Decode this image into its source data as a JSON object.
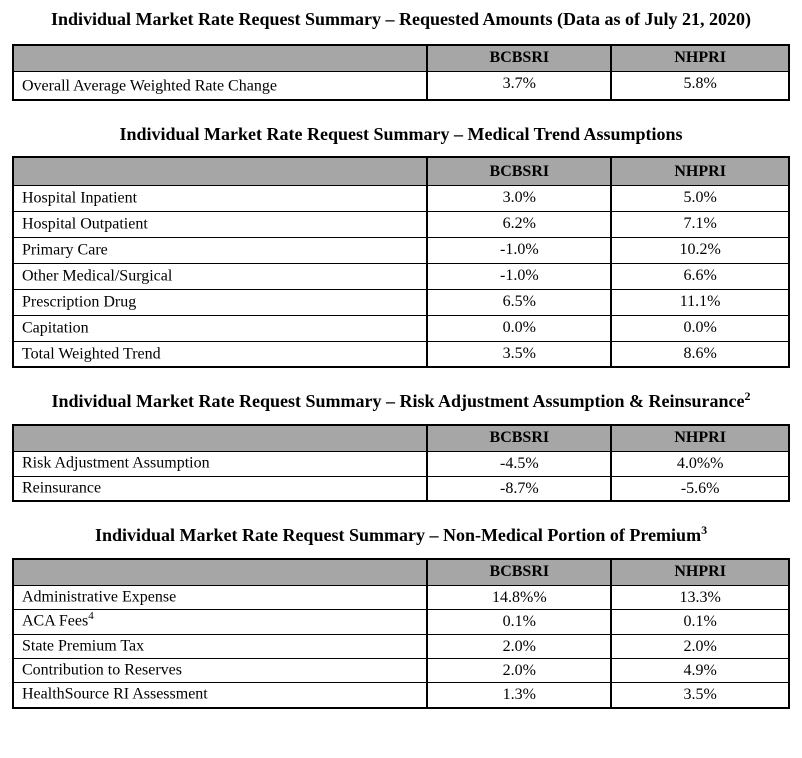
{
  "colors": {
    "header_bg": "#a6a6a6",
    "border": "#000000",
    "page_bg": "#ffffff"
  },
  "sections": [
    {
      "title": "Individual Market Rate Request Summary – Requested Amounts (Data as of July 21, 2020)",
      "columns": [
        "",
        "BCBSRI",
        "NHPRI"
      ],
      "rows": [
        {
          "label": "Overall Average Weighted Rate Change",
          "bcbsri": "3.7%",
          "nhpri": "5.8%"
        }
      ]
    },
    {
      "title": "Individual Market Rate Request Summary – Medical Trend Assumptions",
      "columns": [
        "",
        "BCBSRI",
        "NHPRI"
      ],
      "rows": [
        {
          "label": "Hospital Inpatient",
          "bcbsri": "3.0%",
          "nhpri": "5.0%"
        },
        {
          "label": "Hospital Outpatient",
          "bcbsri": "6.2%",
          "nhpri": "7.1%"
        },
        {
          "label": "Primary Care",
          "bcbsri": "-1.0%",
          "nhpri": "10.2%"
        },
        {
          "label": "Other Medical/Surgical",
          "bcbsri": "-1.0%",
          "nhpri": "6.6%"
        },
        {
          "label": "Prescription Drug",
          "bcbsri": "6.5%",
          "nhpri": "11.1%"
        },
        {
          "label": "Capitation",
          "bcbsri": "0.0%",
          "nhpri": "0.0%"
        },
        {
          "label": "Total Weighted Trend",
          "bcbsri": "3.5%",
          "nhpri": "8.6%"
        }
      ]
    },
    {
      "title": "Individual Market Rate Request Summary – Risk Adjustment Assumption & Reinsurance",
      "title_sup": "2",
      "columns": [
        "",
        "BCBSRI",
        "NHPRI"
      ],
      "rows": [
        {
          "label": "Risk Adjustment Assumption",
          "bcbsri": "-4.5%",
          "nhpri": "4.0%%"
        },
        {
          "label": "Reinsurance",
          "bcbsri": "-8.7%",
          "nhpri": "-5.6%"
        }
      ]
    },
    {
      "title": "Individual Market Rate Request Summary – Non-Medical Portion of Premium",
      "title_sup": "3",
      "columns": [
        "",
        "BCBSRI",
        "NHPRI"
      ],
      "rows": [
        {
          "label": "Administrative Expense",
          "bcbsri": "14.8%%",
          "nhpri": "13.3%"
        },
        {
          "label": "ACA Fees",
          "label_sup": "4",
          "bcbsri": "0.1%",
          "nhpri": "0.1%"
        },
        {
          "label": "State Premium Tax",
          "bcbsri": "2.0%",
          "nhpri": "2.0%"
        },
        {
          "label": "Contribution to Reserves",
          "bcbsri": "2.0%",
          "nhpri": "4.9%"
        },
        {
          "label": "HealthSource RI Assessment",
          "bcbsri": "1.3%",
          "nhpri": "3.5%"
        }
      ]
    }
  ]
}
